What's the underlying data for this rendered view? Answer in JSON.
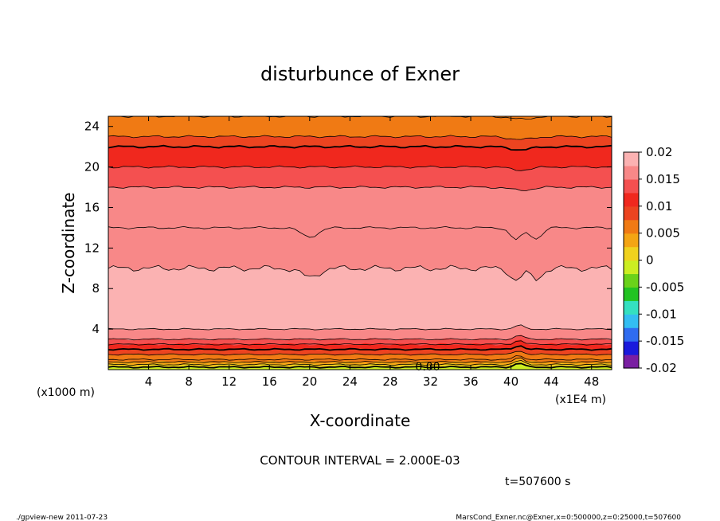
{
  "chart_data": {
    "type": "heatmap",
    "title": "disturbunce of Exner",
    "xlabel": "X-coordinate",
    "ylabel": "Z-coordinate",
    "x_unit_label": "(x1E4 m)",
    "y_unit_label": "(x1000 m)",
    "xlim": [
      0,
      50
    ],
    "ylim": [
      0,
      25
    ],
    "x_ticks": [
      4,
      8,
      12,
      16,
      20,
      24,
      28,
      32,
      36,
      40,
      44,
      48
    ],
    "y_ticks": [
      4,
      8,
      12,
      16,
      20,
      24
    ],
    "contour_interval_text": "CONTOUR INTERVAL = 2.000E-03",
    "contour_label": "0.00",
    "colorbar": {
      "ticks": [
        "0.02",
        "0.015",
        "0.01",
        "0.005",
        "0",
        "-0.005",
        "-0.01",
        "-0.015",
        "-0.02"
      ],
      "range": [
        -0.02,
        0.02
      ],
      "colors": [
        "#7a1fa2",
        "#1a1adc",
        "#2f6cf0",
        "#33bef2",
        "#34e0c0",
        "#22c322",
        "#6ad21a",
        "#ccee22",
        "#f0d21e",
        "#f4a514",
        "#f07a14",
        "#ec4420",
        "#f0281e",
        "#f45050",
        "#f88888",
        "#fbb2b2"
      ]
    },
    "profile_z": [
      0,
      1,
      2,
      3,
      4,
      6,
      8,
      10,
      12,
      14,
      16,
      18,
      20,
      22,
      23,
      25
    ],
    "profile_value": [
      -0.002,
      0.006,
      0.01,
      0.014,
      0.016,
      0.018,
      0.0205,
      0.018,
      0.016,
      0.016,
      0.015,
      0.014,
      0.012,
      0.01,
      0.008,
      0.006
    ],
    "time_label": "t=507600 s"
  },
  "footer": {
    "left": "./gpview-new  2011-07-23",
    "right": "MarsCond_Exner.nc@Exner,x=0:500000,z=0:25000,t=507600"
  }
}
